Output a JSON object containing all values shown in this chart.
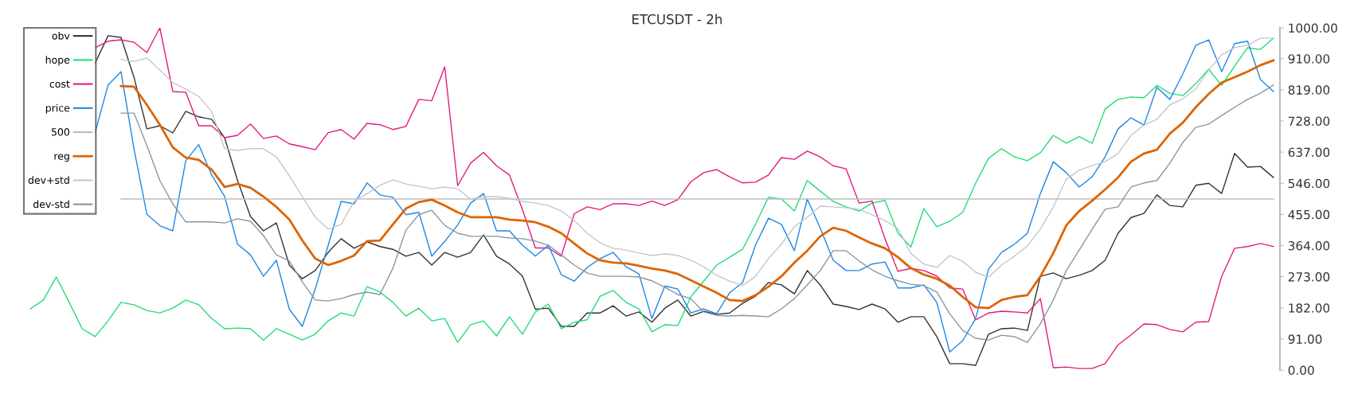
{
  "chart_data": {
    "type": "line",
    "title": "ETCUSDT - 2h",
    "categories": [
      null,
      null,
      null,
      null,
      null,
      null,
      null,
      null,
      null,
      null,
      null,
      null,
      null,
      null,
      null,
      null,
      null,
      null,
      null,
      null,
      null,
      null,
      null,
      null,
      null,
      null,
      null,
      null,
      null,
      null,
      null,
      null,
      null,
      null,
      null,
      null,
      null,
      null,
      null,
      null,
      null,
      null,
      null,
      null,
      null,
      null,
      null,
      null,
      null,
      null,
      null,
      null,
      null,
      null,
      null,
      null,
      null,
      null,
      null,
      null,
      null,
      null,
      null,
      null,
      null,
      null,
      null,
      null,
      null,
      null,
      null,
      null,
      null,
      null,
      null,
      null,
      null,
      null,
      null,
      null,
      null,
      null,
      null,
      null,
      null,
      null,
      null,
      null,
      null,
      null,
      null,
      null,
      null,
      null,
      null,
      null,
      null
    ],
    "series": [
      {
        "name": "obv",
        "color": "#333333",
        "values": [
          null,
          null,
          null,
          null,
          null,
          897,
          977,
          972,
          856,
          705,
          714,
          693,
          756,
          740,
          733,
          679,
          554,
          449,
          407,
          430,
          307,
          267,
          291,
          344,
          384,
          356,
          375,
          361,
          353,
          333,
          344,
          307,
          344,
          330,
          344,
          395,
          333,
          310,
          275,
          178,
          181,
          128,
          128,
          167,
          167,
          188,
          158,
          170,
          140,
          181,
          205,
          158,
          172,
          163,
          167,
          195,
          216,
          256,
          249,
          223,
          291,
          249,
          193,
          186,
          177,
          193,
          179,
          140,
          156,
          156,
          98,
          19,
          19,
          14,
          105,
          121,
          123,
          116,
          274,
          284,
          267,
          277,
          291,
          321,
          400,
          446,
          458,
          512,
          481,
          477,
          540,
          546,
          516,
          633,
          593,
          595,
          563
        ]
      },
      {
        "name": "hope",
        "color": "#22dd77",
        "values": [
          179,
          205,
          272,
          198,
          121,
          98,
          144,
          198,
          191,
          174,
          167,
          181,
          205,
          191,
          151,
          121,
          123,
          121,
          88,
          121,
          105,
          88,
          105,
          144,
          167,
          158,
          244,
          228,
          198,
          158,
          181,
          144,
          151,
          81,
          133,
          144,
          100,
          156,
          105,
          170,
          193,
          121,
          140,
          147,
          216,
          233,
          198,
          179,
          112,
          133,
          130,
          214,
          260,
          307,
          330,
          353,
          426,
          505,
          500,
          465,
          554,
          523,
          493,
          477,
          465,
          488,
          496,
          400,
          360,
          472,
          419,
          435,
          461,
          546,
          619,
          647,
          623,
          612,
          635,
          686,
          663,
          682,
          663,
          763,
          791,
          798,
          796,
          832,
          809,
          802,
          837,
          879,
          832,
          888,
          942,
          937,
          970
        ]
      },
      {
        "name": "cost",
        "color": "#e5197f",
        "values": [
          null,
          null,
          null,
          null,
          null,
          942,
          961,
          965,
          958,
          928,
          1000,
          814,
          812,
          714,
          714,
          679,
          686,
          719,
          677,
          684,
          661,
          653,
          644,
          694,
          703,
          675,
          721,
          717,
          703,
          712,
          791,
          787,
          886,
          539,
          605,
          636,
          597,
          570,
          469,
          357,
          357,
          333,
          457,
          477,
          469,
          486,
          486,
          481,
          494,
          481,
          498,
          550,
          577,
          586,
          565,
          547,
          549,
          570,
          621,
          616,
          640,
          623,
          597,
          588,
          488,
          494,
          384,
          289,
          297,
          291,
          275,
          240,
          237,
          147,
          167,
          172,
          170,
          167,
          209,
          7,
          9,
          5,
          5,
          19,
          74,
          103,
          135,
          133,
          119,
          112,
          140,
          142,
          274,
          356,
          361,
          370,
          361
        ]
      },
      {
        "name": "price",
        "color": "#1e88e5",
        "values": [
          null,
          null,
          null,
          null,
          null,
          694,
          833,
          872,
          647,
          455,
          422,
          407,
          612,
          659,
          570,
          508,
          368,
          337,
          274,
          321,
          178,
          128,
          237,
          365,
          493,
          486,
          547,
          512,
          505,
          454,
          461,
          333,
          376,
          424,
          488,
          516,
          407,
          407,
          365,
          333,
          365,
          279,
          260,
          300,
          326,
          344,
          302,
          281,
          151,
          246,
          237,
          167,
          179,
          165,
          226,
          256,
          365,
          444,
          426,
          349,
          500,
          415,
          321,
          291,
          291,
          310,
          316,
          240,
          240,
          249,
          198,
          53,
          86,
          151,
          295,
          344,
          368,
          400,
          516,
          609,
          577,
          535,
          565,
          623,
          705,
          737,
          716,
          826,
          791,
          865,
          949,
          965,
          872,
          954,
          961,
          849,
          814
        ]
      },
      {
        "name": "500",
        "color": "#bdbdbd",
        "values": [
          null,
          null,
          null,
          null,
          null,
          null,
          null,
          500,
          500,
          500,
          500,
          500,
          500,
          500,
          500,
          500,
          500,
          500,
          500,
          500,
          500,
          500,
          500,
          500,
          500,
          500,
          500,
          500,
          500,
          500,
          500,
          500,
          500,
          500,
          500,
          500,
          500,
          500,
          500,
          500,
          500,
          500,
          500,
          500,
          500,
          500,
          500,
          500,
          500,
          500,
          500,
          500,
          500,
          500,
          500,
          500,
          500,
          500,
          500,
          500,
          500,
          500,
          500,
          500,
          500,
          500,
          500,
          500,
          500,
          500,
          500,
          500,
          500,
          500,
          500,
          500,
          500,
          500,
          500,
          500,
          500,
          500,
          500,
          500,
          500,
          500,
          500,
          500,
          500,
          500,
          500,
          500,
          500,
          500,
          500,
          500,
          500
        ]
      },
      {
        "name": "reg",
        "color": "#dd6400",
        "values": [
          null,
          null,
          null,
          null,
          null,
          null,
          null,
          830,
          828,
          775,
          717,
          651,
          621,
          614,
          586,
          535,
          544,
          533,
          507,
          477,
          440,
          379,
          326,
          307,
          319,
          335,
          377,
          379,
          426,
          472,
          491,
          498,
          481,
          461,
          447,
          447,
          447,
          440,
          437,
          432,
          419,
          400,
          370,
          341,
          321,
          314,
          312,
          305,
          297,
          291,
          281,
          263,
          244,
          226,
          205,
          202,
          219,
          244,
          274,
          314,
          349,
          391,
          416,
          407,
          388,
          370,
          356,
          330,
          298,
          279,
          267,
          247,
          214,
          184,
          181,
          205,
          214,
          219,
          274,
          342,
          423,
          465,
          495,
          528,
          563,
          609,
          633,
          644,
          691,
          723,
          768,
          807,
          840,
          856,
          872,
          891,
          905
        ]
      },
      {
        "name": "dev+std",
        "color": "#c2c8cd",
        "values": [
          null,
          null,
          null,
          null,
          null,
          null,
          null,
          907,
          902,
          912,
          877,
          840,
          821,
          800,
          756,
          647,
          642,
          647,
          647,
          623,
          568,
          507,
          447,
          412,
          426,
          493,
          516,
          540,
          556,
          544,
          537,
          530,
          535,
          530,
          500,
          507,
          507,
          502,
          493,
          488,
          481,
          465,
          437,
          400,
          372,
          356,
          351,
          342,
          335,
          340,
          335,
          321,
          302,
          277,
          260,
          247,
          274,
          326,
          368,
          419,
          447,
          479,
          477,
          474,
          470,
          454,
          437,
          414,
          341,
          310,
          300,
          335,
          318,
          286,
          272,
          307,
          333,
          363,
          412,
          477,
          558,
          584,
          598,
          609,
          633,
          686,
          716,
          733,
          775,
          793,
          821,
          877,
          921,
          942,
          949,
          970,
          970
        ]
      },
      {
        "name": "dev-std",
        "color": "#8a96a2",
        "values": [
          null,
          null,
          null,
          null,
          null,
          null,
          null,
          751,
          751,
          656,
          554,
          486,
          433,
          433,
          433,
          430,
          442,
          435,
          393,
          337,
          319,
          258,
          205,
          202,
          209,
          221,
          228,
          221,
          298,
          409,
          454,
          467,
          423,
          400,
          391,
          391,
          391,
          386,
          384,
          377,
          365,
          337,
          307,
          284,
          274,
          274,
          274,
          272,
          261,
          242,
          221,
          209,
          170,
          160,
          158,
          160,
          158,
          156,
          179,
          209,
          249,
          291,
          349,
          349,
          319,
          293,
          274,
          261,
          251,
          247,
          228,
          165,
          116,
          93,
          88,
          102,
          98,
          81,
          135,
          205,
          291,
          351,
          412,
          470,
          477,
          535,
          547,
          554,
          605,
          665,
          709,
          719,
          744,
          768,
          791,
          809,
          833
        ]
      }
    ],
    "ylim": [
      0,
      1000
    ],
    "yticks": [
      {
        "value": 0,
        "label": "0.00"
      },
      {
        "value": 91,
        "label": "91.00"
      },
      {
        "value": 182,
        "label": "182.00"
      },
      {
        "value": 273,
        "label": "273.00"
      },
      {
        "value": 364,
        "label": "364.00"
      },
      {
        "value": 455,
        "label": "455.00"
      },
      {
        "value": 546,
        "label": "546.00"
      },
      {
        "value": 637,
        "label": "637.00"
      },
      {
        "value": 728,
        "label": "728.00"
      },
      {
        "value": 819,
        "label": "819.00"
      },
      {
        "value": 910,
        "label": "910.00"
      },
      {
        "value": 1000,
        "label": "1000.00"
      }
    ],
    "tick_labels": "y",
    "grid": false,
    "legend": "top left",
    "marker": "none",
    "line_style": "solid"
  }
}
